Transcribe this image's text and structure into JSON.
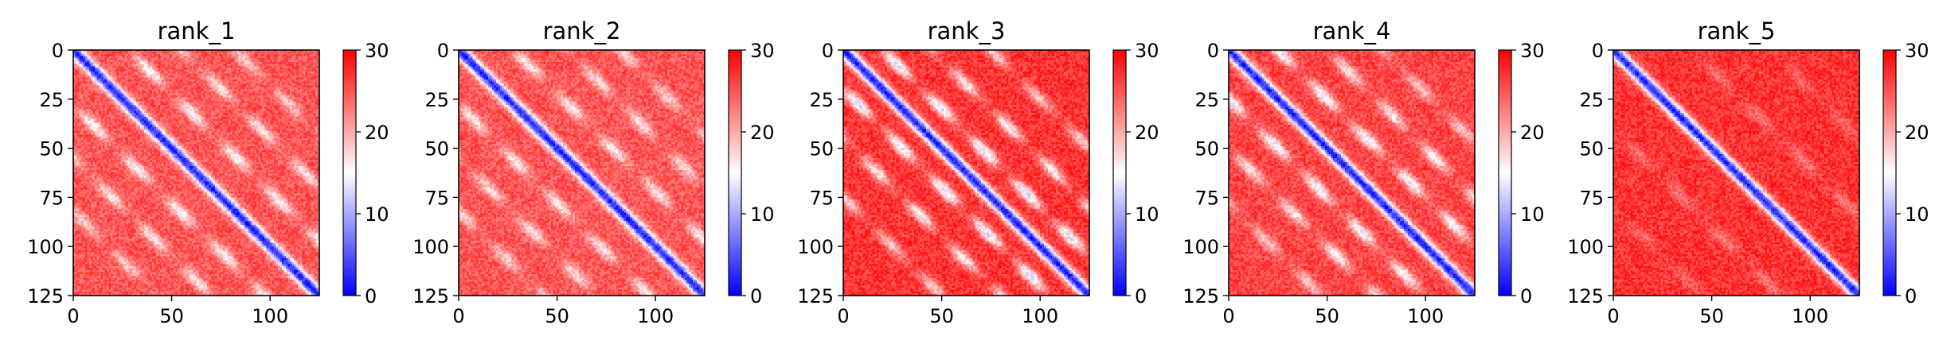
{
  "chart_data": [
    {
      "type": "heatmap",
      "title": "rank_1",
      "xlim": [
        0,
        125
      ],
      "ylim": [
        125,
        0
      ],
      "x_ticks": [
        0,
        50,
        100
      ],
      "y_ticks": [
        0,
        25,
        50,
        75,
        100,
        125
      ],
      "colorbar": {
        "min": 0,
        "max": 30,
        "ticks": [
          0,
          10,
          20,
          30
        ],
        "colormap": "bwr"
      },
      "matrix_size": 125,
      "diagonal_value": 2,
      "background_value": 25,
      "off_diagonal_bands": [
        {
          "offset": 28,
          "value": 15
        },
        {
          "offset": 55,
          "value": 16
        },
        {
          "offset": 82,
          "value": 18
        }
      ]
    },
    {
      "type": "heatmap",
      "title": "rank_2",
      "xlim": [
        0,
        125
      ],
      "ylim": [
        125,
        0
      ],
      "x_ticks": [
        0,
        50,
        100
      ],
      "y_ticks": [
        0,
        25,
        50,
        75,
        100,
        125
      ],
      "colorbar": {
        "min": 0,
        "max": 30,
        "ticks": [
          0,
          10,
          20,
          30
        ],
        "colormap": "bwr"
      },
      "matrix_size": 125,
      "diagonal_value": 2,
      "background_value": 25,
      "off_diagonal_bands": [
        {
          "offset": 28,
          "value": 16
        },
        {
          "offset": 55,
          "value": 17
        },
        {
          "offset": 82,
          "value": 18
        }
      ]
    },
    {
      "type": "heatmap",
      "title": "rank_3",
      "xlim": [
        0,
        125
      ],
      "ylim": [
        125,
        0
      ],
      "x_ticks": [
        0,
        50,
        100
      ],
      "y_ticks": [
        0,
        25,
        50,
        75,
        100,
        125
      ],
      "colorbar": {
        "min": 0,
        "max": 30,
        "ticks": [
          0,
          10,
          20,
          30
        ],
        "colormap": "bwr"
      },
      "matrix_size": 125,
      "diagonal_value": 2,
      "background_value": 27,
      "off_diagonal_bands": [
        {
          "offset": 20,
          "value": 13
        },
        {
          "offset": 45,
          "value": 16
        },
        {
          "offset": 75,
          "value": 18
        }
      ]
    },
    {
      "type": "heatmap",
      "title": "rank_4",
      "xlim": [
        0,
        125
      ],
      "ylim": [
        125,
        0
      ],
      "x_ticks": [
        0,
        50,
        100
      ],
      "y_ticks": [
        0,
        25,
        50,
        75,
        100,
        125
      ],
      "colorbar": {
        "min": 0,
        "max": 30,
        "ticks": [
          0,
          10,
          20,
          30
        ],
        "colormap": "bwr"
      },
      "matrix_size": 125,
      "diagonal_value": 2,
      "background_value": 26,
      "off_diagonal_bands": [
        {
          "offset": 25,
          "value": 14
        },
        {
          "offset": 50,
          "value": 16
        },
        {
          "offset": 78,
          "value": 18
        }
      ]
    },
    {
      "type": "heatmap",
      "title": "rank_5",
      "xlim": [
        0,
        125
      ],
      "ylim": [
        125,
        0
      ],
      "x_ticks": [
        0,
        50,
        100
      ],
      "y_ticks": [
        0,
        25,
        50,
        75,
        100,
        125
      ],
      "colorbar": {
        "min": 0,
        "max": 30,
        "ticks": [
          0,
          10,
          20,
          30
        ],
        "colormap": "bwr"
      },
      "matrix_size": 125,
      "diagonal_value": 2,
      "background_value": 27,
      "off_diagonal_bands": [
        {
          "offset": 40,
          "value": 23
        },
        {
          "offset": 80,
          "value": 24
        }
      ]
    }
  ]
}
